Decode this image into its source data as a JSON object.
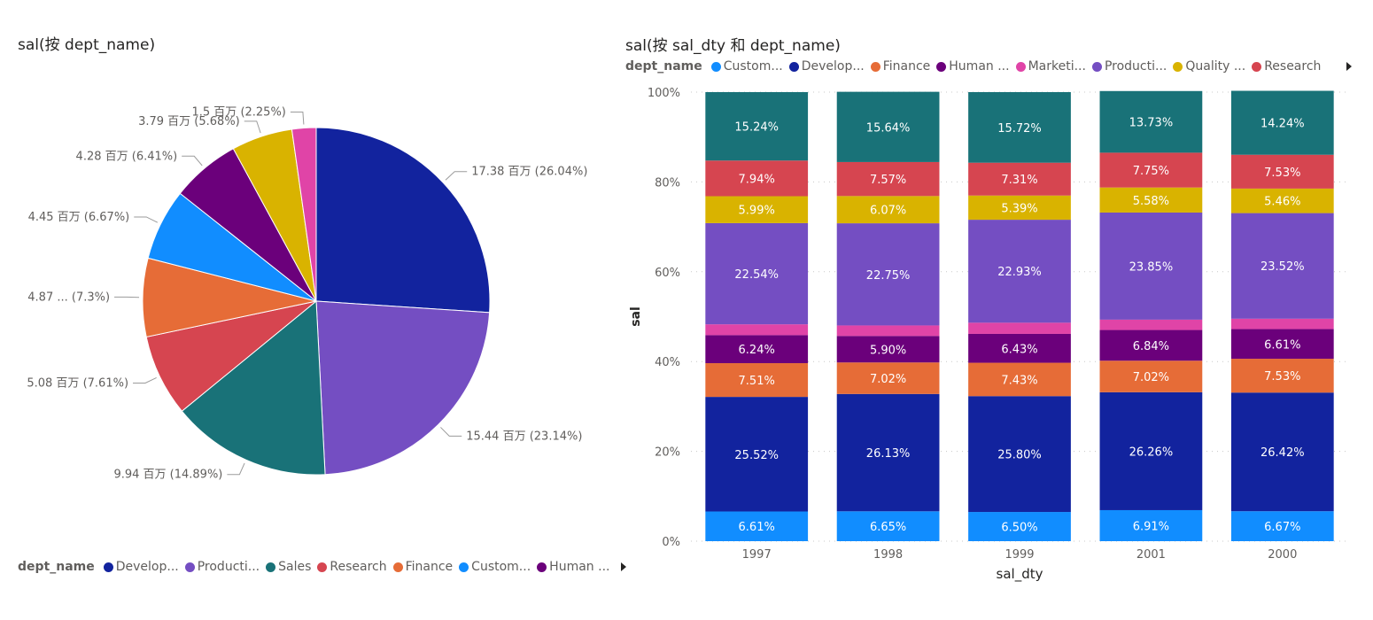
{
  "colors": {
    "Customer Service": "#118DFF",
    "Development": "#12239E",
    "Finance": "#E66C37",
    "Human Resources": "#6B007B",
    "Marketing": "#E044A7",
    "Production": "#744EC2",
    "Quality Management": "#D9B300",
    "Research": "#D64550",
    "Sales": "#197278"
  },
  "pie": {
    "title": "sal(按 dept_name)",
    "legend": {
      "title": "dept_name",
      "items": [
        {
          "key": "Development",
          "label": "Develop..."
        },
        {
          "key": "Production",
          "label": "Producti..."
        },
        {
          "key": "Sales",
          "label": "Sales"
        },
        {
          "key": "Research",
          "label": "Research"
        },
        {
          "key": "Finance",
          "label": "Finance"
        },
        {
          "key": "Customer Service",
          "label": "Custom..."
        },
        {
          "key": "Human Resources",
          "label": "Human ..."
        }
      ]
    }
  },
  "bar": {
    "title": "sal(按 sal_dty 和 dept_name)",
    "legend": {
      "title": "dept_name",
      "items": [
        {
          "key": "Customer Service",
          "label": "Custom..."
        },
        {
          "key": "Development",
          "label": "Develop..."
        },
        {
          "key": "Finance",
          "label": "Finance"
        },
        {
          "key": "Human Resources",
          "label": "Human ..."
        },
        {
          "key": "Marketing",
          "label": "Marketi..."
        },
        {
          "key": "Production",
          "label": "Producti..."
        },
        {
          "key": "Quality Management",
          "label": "Quality ..."
        },
        {
          "key": "Research",
          "label": "Research"
        }
      ]
    }
  },
  "chart_data": [
    {
      "type": "pie",
      "title": "sal(按 dept_name)",
      "legend_title": "dept_name",
      "legend_position": "bottom-left",
      "slices": [
        {
          "key": "Development",
          "value": 17.38,
          "percent": 26.04,
          "label": "17.38 百万 (26.04%)"
        },
        {
          "key": "Production",
          "value": 15.44,
          "percent": 23.14,
          "label": "15.44 百万 (23.14%)"
        },
        {
          "key": "Sales",
          "value": 9.94,
          "percent": 14.89,
          "label": "9.94 百万 (14.89%)"
        },
        {
          "key": "Research",
          "value": 5.08,
          "percent": 7.61,
          "label": "5.08 百万 (7.61%)"
        },
        {
          "key": "Finance",
          "value": 4.87,
          "percent": 7.3,
          "label": "4.87 ... (7.3%)"
        },
        {
          "key": "Customer Service",
          "value": 4.45,
          "percent": 6.67,
          "label": "4.45 百万 (6.67%)"
        },
        {
          "key": "Human Resources",
          "value": 4.28,
          "percent": 6.41,
          "label": "4.28 百万 (6.41%)"
        },
        {
          "key": "Quality Management",
          "value": 3.79,
          "percent": 5.68,
          "label": "3.79 百万 (5.68%)"
        },
        {
          "key": "Marketing",
          "value": 1.5,
          "percent": 2.25,
          "label": "1.5 百万 (2.25%)"
        }
      ]
    },
    {
      "type": "bar",
      "stacked": "100%",
      "title": "sal(按 sal_dty 和 dept_name)",
      "xlabel": "sal_dty",
      "ylabel": "sal",
      "ylim": [
        0,
        100
      ],
      "yticks": [
        "0%",
        "20%",
        "40%",
        "60%",
        "80%",
        "100%"
      ],
      "grid": true,
      "legend_title": "dept_name",
      "legend_position": "top",
      "categories": [
        "1997",
        "1998",
        "1999",
        "2001",
        "2000"
      ],
      "series": [
        {
          "key": "Customer Service",
          "name": "Customer Service",
          "values": [
            6.61,
            6.65,
            6.5,
            6.91,
            6.67
          ],
          "labels": [
            "6.61%",
            "6.65%",
            "6.50%",
            "6.91%",
            "6.67%"
          ]
        },
        {
          "key": "Development",
          "name": "Development",
          "values": [
            25.52,
            26.13,
            25.8,
            26.26,
            26.42
          ],
          "labels": [
            "25.52%",
            "26.13%",
            "25.80%",
            "26.26%",
            "26.42%"
          ]
        },
        {
          "key": "Finance",
          "name": "Finance",
          "values": [
            7.51,
            7.02,
            7.43,
            7.02,
            7.53
          ],
          "labels": [
            "7.51%",
            "7.02%",
            "7.43%",
            "7.02%",
            "7.53%"
          ]
        },
        {
          "key": "Human Resources",
          "name": "Human Resources",
          "values": [
            6.24,
            5.9,
            6.43,
            6.84,
            6.61
          ],
          "labels": [
            "6.24%",
            "5.90%",
            "6.43%",
            "6.84%",
            "6.61%"
          ]
        },
        {
          "key": "Marketing",
          "name": "Marketing",
          "values": [
            2.41,
            2.34,
            2.49,
            2.3,
            2.31
          ],
          "labels": [
            "",
            "",
            "",
            "",
            ""
          ]
        },
        {
          "key": "Production",
          "name": "Production",
          "values": [
            22.54,
            22.75,
            22.93,
            23.85,
            23.52
          ],
          "labels": [
            "22.54%",
            "22.75%",
            "22.93%",
            "23.85%",
            "23.52%"
          ]
        },
        {
          "key": "Quality Management",
          "name": "Quality Management",
          "values": [
            5.99,
            6.07,
            5.39,
            5.58,
            5.46
          ],
          "labels": [
            "5.99%",
            "6.07%",
            "5.39%",
            "5.58%",
            "5.46%"
          ]
        },
        {
          "key": "Research",
          "name": "Research",
          "values": [
            7.94,
            7.57,
            7.31,
            7.75,
            7.53
          ],
          "labels": [
            "7.94%",
            "7.57%",
            "7.31%",
            "7.75%",
            "7.53%"
          ]
        },
        {
          "key": "Sales",
          "name": "Sales",
          "values": [
            15.24,
            15.64,
            15.72,
            13.73,
            14.24
          ],
          "labels": [
            "15.24%",
            "15.64%",
            "15.72%",
            "13.73%",
            "14.24%"
          ]
        }
      ]
    }
  ]
}
